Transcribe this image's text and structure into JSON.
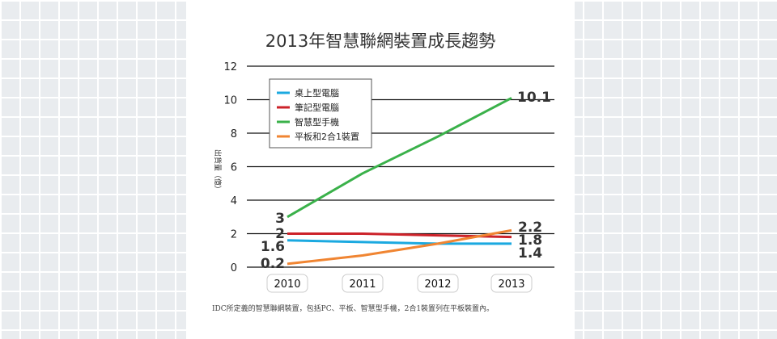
{
  "chart_data": {
    "type": "line",
    "title": "2013年智慧聯網裝置成長趨勢",
    "ylabel": "出貨量（億）",
    "xlabel": "",
    "categories": [
      "2010",
      "2011",
      "2012",
      "2013"
    ],
    "ylim": [
      0,
      12
    ],
    "yticks": [
      "0",
      "2",
      "4",
      "6",
      "8",
      "10",
      "12"
    ],
    "grid": true,
    "legend_position": "top-left",
    "series": [
      {
        "name": "桌上型電腦",
        "color": "#1ba9e0",
        "values": [
          1.6,
          1.5,
          1.4,
          1.4
        ]
      },
      {
        "name": "筆記型電腦",
        "color": "#cc2229",
        "values": [
          2.0,
          2.0,
          1.9,
          1.8
        ]
      },
      {
        "name": "智慧型手機",
        "color": "#3ab14a",
        "values": [
          3.0,
          5.6,
          7.8,
          10.1
        ]
      },
      {
        "name": "平板和2合1裝置",
        "color": "#f08532",
        "values": [
          0.2,
          0.7,
          1.4,
          2.2
        ]
      }
    ],
    "labels_2010": [
      "3",
      "2",
      "1.6",
      "0.2"
    ],
    "labels_2013": [
      "10.1",
      "2.2",
      "1.8",
      "1.4"
    ],
    "note": "IDC所定義的智慧聯網裝置，包括PC、平板、智慧型手機，2合1裝置列在平板裝置內。"
  }
}
